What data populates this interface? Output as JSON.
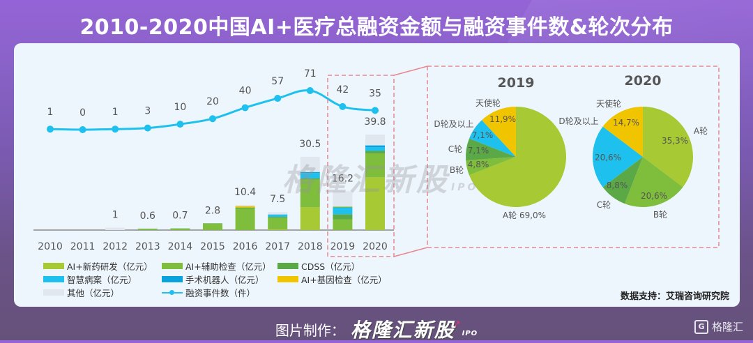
{
  "title": "2010-2020中国AI+医疗总融资金额与融资事件数&轮次分布",
  "watermark": {
    "text": "格隆汇新股",
    "suffix": "IPO"
  },
  "source": "数据支持：艾瑞咨询研究院",
  "footer": {
    "prefix": "图片制作：",
    "brand": "格隆汇新股",
    "suffix": "IPO"
  },
  "corner_logo": {
    "icon": "G",
    "text": "格隆汇"
  },
  "colors": {
    "drug": "#a6c934",
    "aux": "#7fbd3c",
    "cdss": "#5aa846",
    "records": "#1ec0ee",
    "robot": "#0aa2dc",
    "gene": "#f0c500",
    "other": "#e1e7ee",
    "line": "#1ec0ee",
    "dash": "#e8858e"
  },
  "legend": [
    [
      {
        "key": "drug",
        "label": "AI+新药研发（亿元）"
      },
      {
        "key": "aux",
        "label": "AI+辅助检查（亿元）"
      },
      {
        "key": "cdss",
        "label": "CDSS（亿元）"
      }
    ],
    [
      {
        "key": "records",
        "label": "智慧病案（亿元）"
      },
      {
        "key": "robot",
        "label": "手术机器人（亿元）"
      },
      {
        "key": "gene",
        "label": "AI+基因检查（亿元）"
      }
    ],
    [
      {
        "key": "other",
        "label": "其他（亿元）"
      },
      {
        "key": "line",
        "label": "融资事件数（件）",
        "type": "line"
      }
    ]
  ],
  "chart_data": [
    {
      "type": "bar",
      "subtype": "stacked-bar-with-line",
      "title": "",
      "categories": [
        "2010",
        "2011",
        "2012",
        "2013",
        "2014",
        "2015",
        "2016",
        "2017",
        "2018",
        "2019",
        "2020"
      ],
      "totals": [
        0,
        0,
        1,
        0.6,
        0.7,
        2.8,
        10.4,
        7.5,
        30.5,
        16.2,
        39.8
      ],
      "total_labels": [
        "",
        "",
        "1",
        "0.6",
        "0.7",
        "2.8",
        "10.4",
        "7.5",
        "30.5",
        "16.2",
        "39.8"
      ],
      "series": [
        {
          "name": "AI+新药研发（亿元）",
          "key": "drug",
          "values": [
            0,
            0,
            0,
            0,
            0,
            0,
            0,
            0.3,
            9.5,
            0,
            22.0
          ]
        },
        {
          "name": "AI+辅助检查（亿元）",
          "key": "aux",
          "values": [
            0,
            0,
            0,
            0.5,
            0.6,
            2.6,
            9.0,
            4.8,
            11.5,
            4.5,
            10.0
          ]
        },
        {
          "name": "CDSS（亿元）",
          "key": "cdss",
          "values": [
            0,
            0,
            0,
            0.1,
            0.1,
            0.2,
            0.4,
            0.4,
            0.6,
            2.1,
            1.0
          ]
        },
        {
          "name": "智慧病案（亿元）",
          "key": "records",
          "values": [
            0,
            0,
            0,
            0,
            0,
            0,
            0,
            0.8,
            2.2,
            3.0,
            1.5
          ]
        },
        {
          "name": "手术机器人（亿元）",
          "key": "robot",
          "values": [
            0,
            0,
            0,
            0,
            0,
            0,
            0,
            0.2,
            0.4,
            0,
            0.8
          ]
        },
        {
          "name": "AI+基因检查（亿元）",
          "key": "gene",
          "values": [
            0,
            0,
            0,
            0,
            0,
            0,
            0.6,
            0,
            0,
            0.3,
            0
          ]
        },
        {
          "name": "其他（亿元）",
          "key": "other",
          "values": [
            0,
            0,
            1.0,
            0,
            0,
            0,
            0.4,
            1.0,
            6.3,
            6.3,
            4.5
          ]
        }
      ],
      "line_series": {
        "name": "融资事件数（件）",
        "values": [
          1,
          0,
          1,
          3,
          10,
          20,
          40,
          57,
          71,
          42,
          35
        ]
      },
      "highlight_categories": [
        "2019",
        "2020"
      ],
      "ylim": [
        0,
        40
      ],
      "grid": false,
      "legend": "bottom-left"
    },
    {
      "type": "pie",
      "title": "2019",
      "slices": [
        {
          "label": "A轮",
          "value": 69.0,
          "text": "69,0%",
          "key": "drug"
        },
        {
          "label": "B轮",
          "value": 4.8,
          "text": "4,8%",
          "key": "aux"
        },
        {
          "label": "C轮",
          "value": 7.1,
          "text": "7,1%",
          "key": "cdss"
        },
        {
          "label": "D轮及以上",
          "value": 7.1,
          "text": "7,1%",
          "key": "records"
        },
        {
          "label": "天使轮",
          "value": 11.9,
          "text": "11,9%",
          "key": "gene"
        }
      ]
    },
    {
      "type": "pie",
      "title": "2020",
      "slices": [
        {
          "label": "A轮",
          "value": 35.3,
          "text": "35,3%",
          "key": "drug"
        },
        {
          "label": "B轮",
          "value": 20.6,
          "text": "20,6%",
          "key": "aux"
        },
        {
          "label": "C轮",
          "value": 8.8,
          "text": "8,8%",
          "key": "cdss"
        },
        {
          "label": "D轮及以上",
          "value": 20.6,
          "text": "20,6%",
          "key": "records"
        },
        {
          "label": "天使轮",
          "value": 14.7,
          "text": "14,7%",
          "key": "gene"
        }
      ]
    }
  ]
}
